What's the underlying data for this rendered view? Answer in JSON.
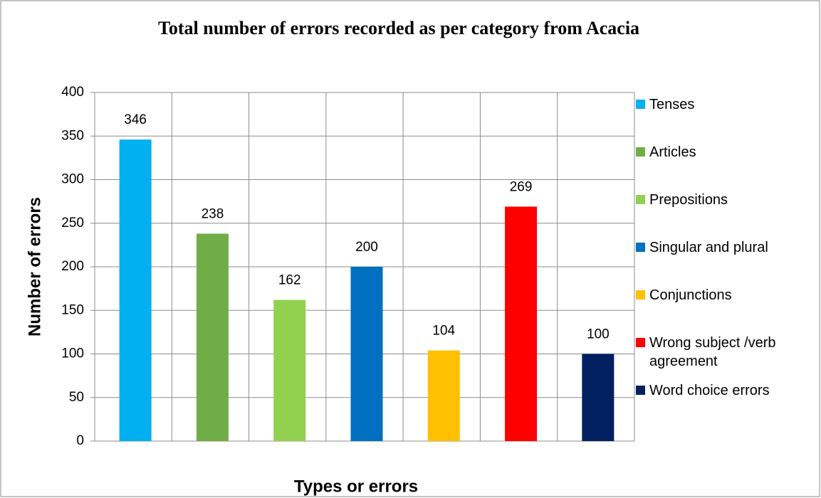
{
  "chart_data": {
    "type": "bar",
    "title": "Total number of errors recorded as per category from Acacia",
    "x_label": "Types or errors",
    "y_label": "Number of errors",
    "series": [
      {
        "name": "Tenses",
        "color": "#00b0f0",
        "values": [
          346
        ]
      },
      {
        "name": "Articles",
        "color": "#70ad47",
        "values": [
          238
        ]
      },
      {
        "name": "Prepositions",
        "color": "#92d050",
        "values": [
          162
        ]
      },
      {
        "name": "Singular and plural",
        "color": "#0070c0",
        "values": [
          200
        ]
      },
      {
        "name": "Conjunctions",
        "color": "#ffc000",
        "values": [
          104
        ]
      },
      {
        "name": "Wrong subject /verb agreement",
        "color": "#ff0000",
        "values": [
          269
        ]
      },
      {
        "name": "Word choice errors",
        "color": "#002060",
        "values": [
          100
        ]
      }
    ],
    "ylim": [
      0,
      400
    ],
    "yticks": [
      0,
      50,
      100,
      150,
      200,
      250,
      300,
      350,
      400
    ],
    "grid": true,
    "legend": "right"
  }
}
